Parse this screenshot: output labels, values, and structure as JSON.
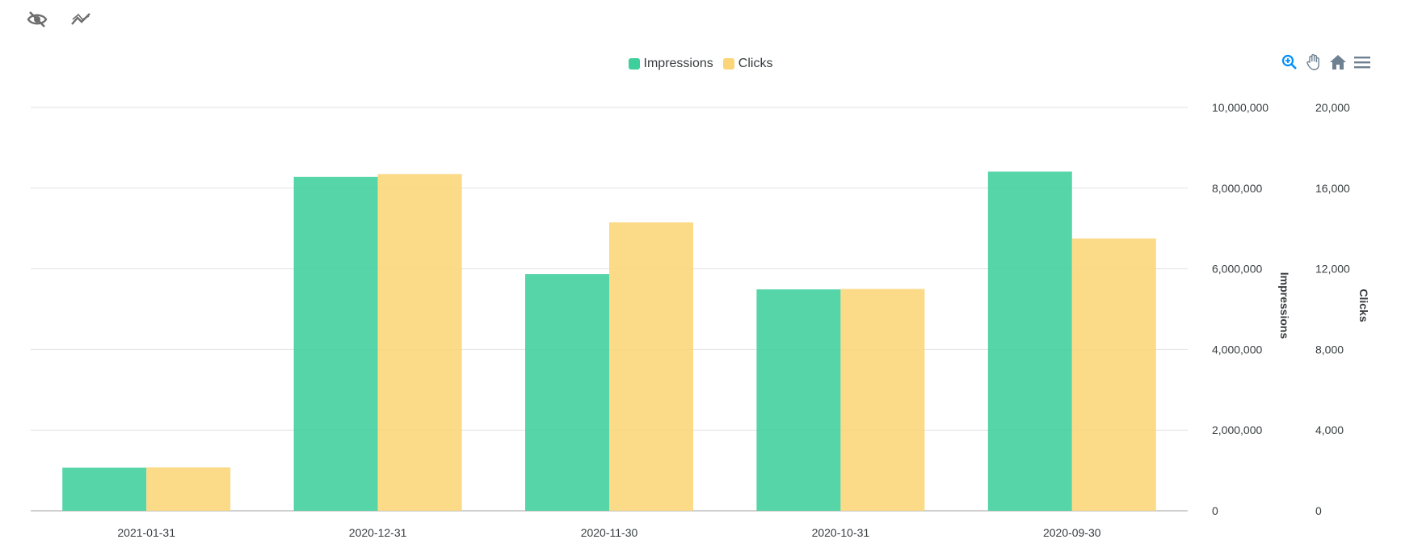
{
  "toolbar": {
    "left_icons": [
      "eye-off-icon",
      "trend-line-icon"
    ],
    "right_icons": [
      "zoom-in-icon",
      "pan-hand-icon",
      "home-reset-icon",
      "menu-icon"
    ]
  },
  "legend": {
    "placement": "top-center",
    "items": [
      {
        "label": "Impressions",
        "color": "#3fcf9c"
      },
      {
        "label": "Clicks",
        "color": "#fbd577"
      }
    ]
  },
  "chart_data": {
    "type": "bar",
    "categories": [
      "2021-01-31",
      "2020-12-31",
      "2020-11-30",
      "2020-10-31",
      "2020-09-30"
    ],
    "series": [
      {
        "name": "Impressions",
        "axis": "Impressions",
        "color": "#3fcf9c",
        "values": [
          1070000,
          8280000,
          5870000,
          5490000,
          8410000
        ]
      },
      {
        "name": "Clicks",
        "axis": "Clicks",
        "color": "#fbd577",
        "values": [
          2150,
          16700,
          14300,
          11000,
          13500
        ]
      }
    ],
    "y_axes": [
      {
        "title": "Impressions",
        "range": [
          0,
          10000000
        ],
        "ticks": [
          "0",
          "2,000,000",
          "4,000,000",
          "6,000,000",
          "8,000,000",
          "10,000,000"
        ]
      },
      {
        "title": "Clicks",
        "range": [
          0,
          20000
        ],
        "ticks": [
          "0",
          "4,000",
          "8,000",
          "12,000",
          "16,000",
          "20,000"
        ]
      }
    ],
    "grid": true
  }
}
